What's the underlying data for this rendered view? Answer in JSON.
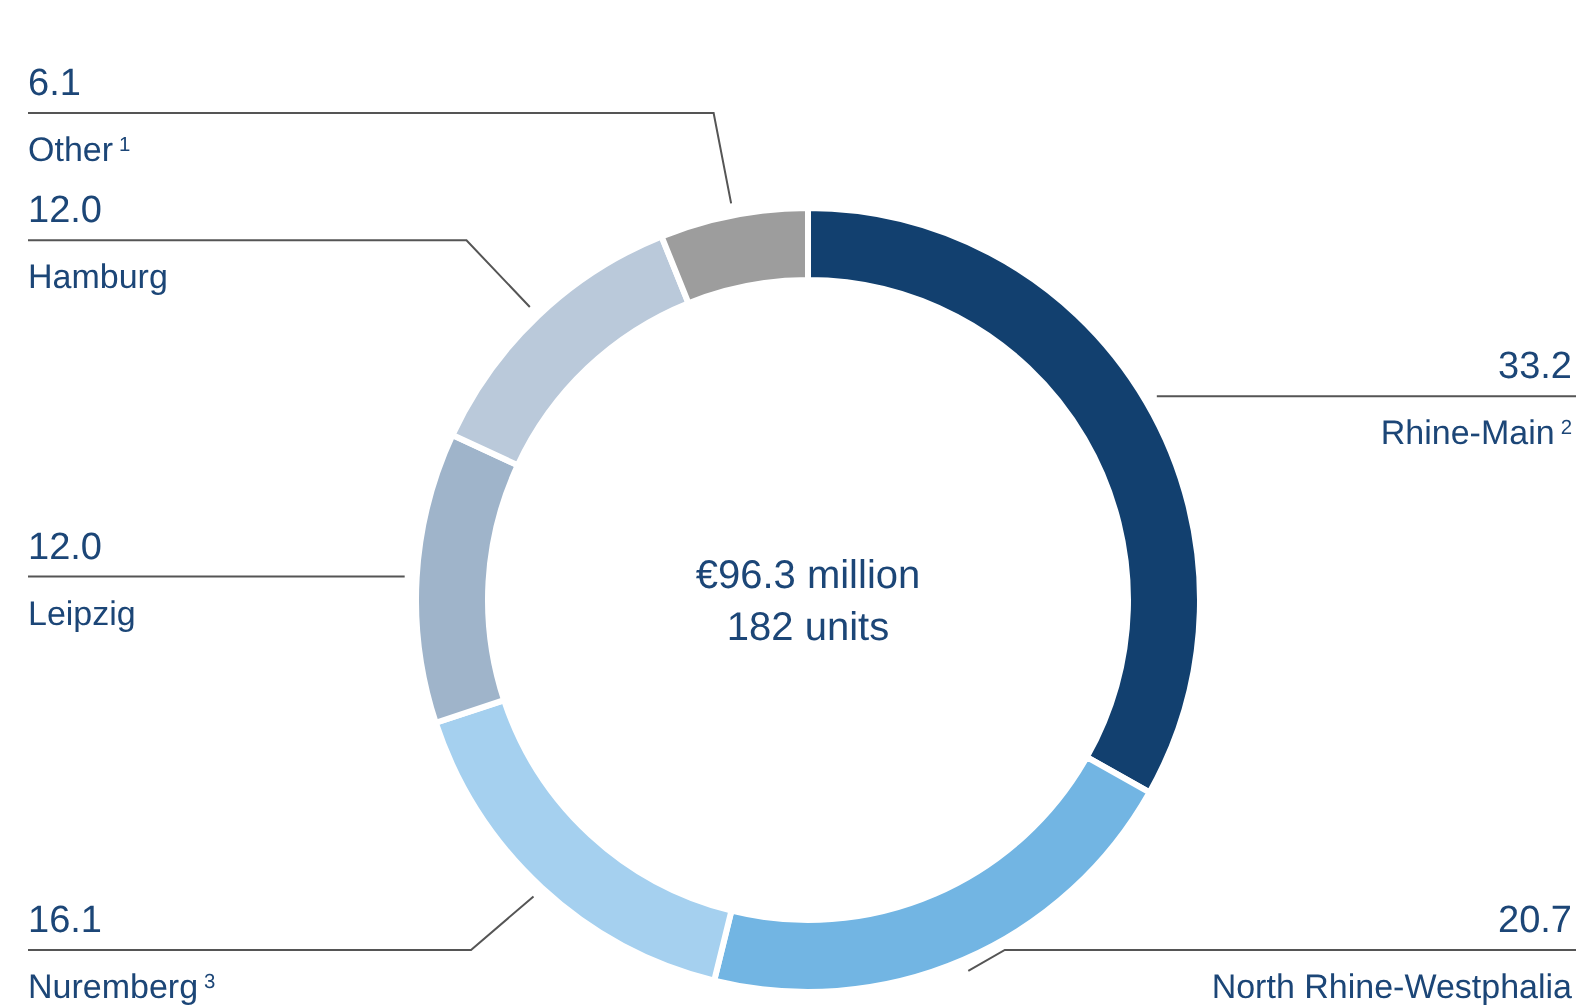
{
  "chart_data": {
    "type": "donut",
    "categories": [
      "Rhine-Main$^{2}$",
      "North Rhine-Westphalia",
      "Nuremberg$^{3}$",
      "Leipzig",
      "Hamburg",
      "Other$^{1}$"
    ],
    "values": [
      33.2,
      20.7,
      16.1,
      12.0,
      12.0,
      6.1
    ],
    "colors": [
      "#12406f",
      "#72b5e3",
      "#a5d0ef",
      "#9fb4ca",
      "#bac9da",
      "#9d9d9d"
    ],
    "value_labels": [
      "33.2",
      "20.7",
      "16.1",
      "12.0",
      "12.0",
      "6.1"
    ],
    "annotations": [
      "€96.3 million",
      "182 units"
    ]
  }
}
